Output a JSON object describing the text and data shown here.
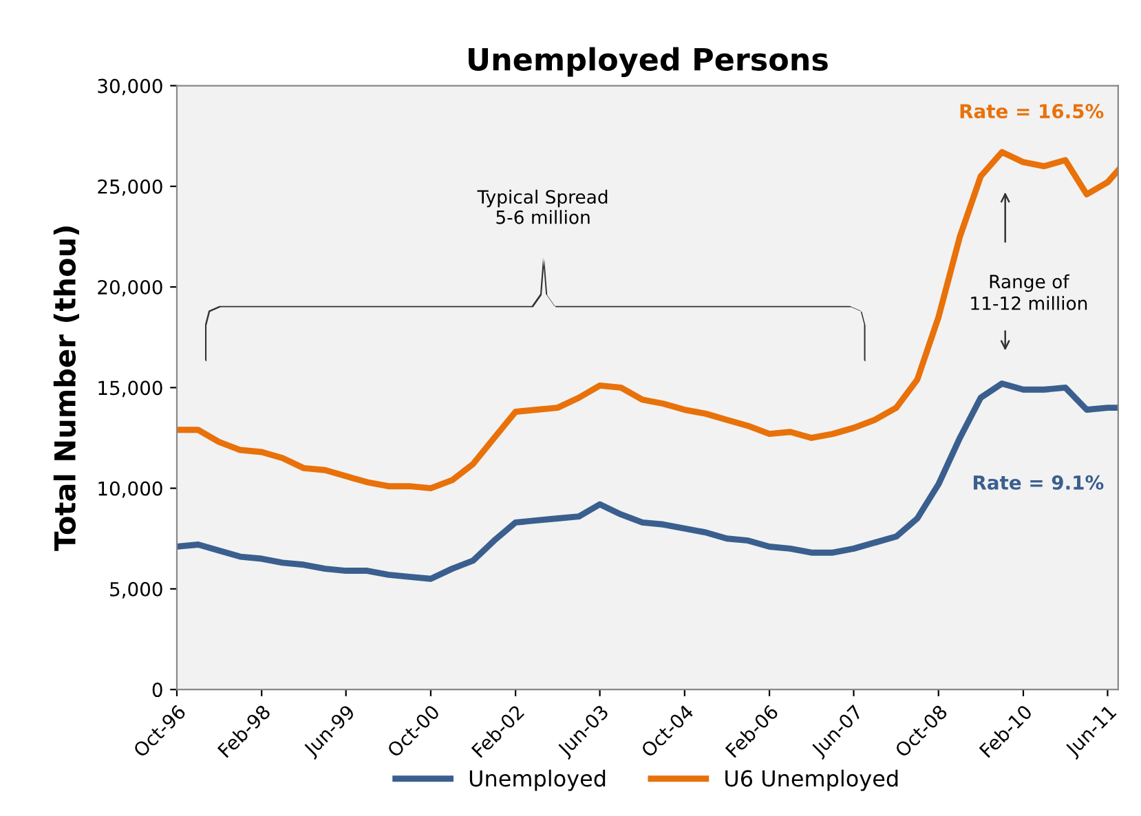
{
  "chart_data": {
    "type": "line",
    "title": "Unemployed Persons",
    "ylabel": "Total Number (thou)",
    "x": [
      "1996-10",
      "1997-02",
      "1997-06",
      "1997-10",
      "1998-02",
      "1998-06",
      "1998-10",
      "1999-02",
      "1999-06",
      "1999-10",
      "2000-02",
      "2000-06",
      "2000-10",
      "2001-02",
      "2001-06",
      "2001-10",
      "2002-02",
      "2002-06",
      "2002-10",
      "2003-02",
      "2003-06",
      "2003-10",
      "2004-02",
      "2004-06",
      "2004-10",
      "2005-02",
      "2005-06",
      "2005-10",
      "2006-02",
      "2006-06",
      "2006-10",
      "2007-02",
      "2007-06",
      "2007-10",
      "2008-02",
      "2008-06",
      "2008-10",
      "2009-02",
      "2009-06",
      "2009-10",
      "2010-02",
      "2010-06",
      "2010-10",
      "2011-02",
      "2011-06",
      "2011-08"
    ],
    "series": [
      {
        "name": "Unemployed",
        "color": "#3a5f8f",
        "values": [
          7100,
          7200,
          6900,
          6600,
          6500,
          6300,
          6200,
          6000,
          5900,
          5900,
          5700,
          5600,
          5500,
          6000,
          6400,
          7400,
          8300,
          8400,
          8500,
          8600,
          9200,
          8700,
          8300,
          8200,
          8000,
          7800,
          7500,
          7400,
          7100,
          7000,
          6800,
          6800,
          7000,
          7300,
          7600,
          8500,
          10200,
          12500,
          14500,
          15200,
          14900,
          14900,
          15000,
          13900,
          14000,
          14000
        ]
      },
      {
        "name": "U6 Unemployed",
        "color": "#e8710a",
        "values": [
          12900,
          12900,
          12300,
          11900,
          11800,
          11500,
          11000,
          10900,
          10600,
          10300,
          10100,
          10100,
          10000,
          10400,
          11200,
          12500,
          13800,
          13900,
          14000,
          14500,
          15100,
          15000,
          14400,
          14200,
          13900,
          13700,
          13400,
          13100,
          12700,
          12800,
          12500,
          12700,
          13000,
          13400,
          14000,
          15400,
          18500,
          22500,
          25500,
          26700,
          26200,
          26000,
          26300,
          24600,
          25200,
          25800
        ]
      }
    ],
    "xlim": [
      "1996-10",
      "2011-08"
    ],
    "xticks": [
      {
        "value": "1996-10",
        "label": "Oct-96"
      },
      {
        "value": "1998-02",
        "label": "Feb-98"
      },
      {
        "value": "1999-06",
        "label": "Jun-99"
      },
      {
        "value": "2000-10",
        "label": "Oct-00"
      },
      {
        "value": "2002-02",
        "label": "Feb-02"
      },
      {
        "value": "2003-06",
        "label": "Jun-03"
      },
      {
        "value": "2004-10",
        "label": "Oct-04"
      },
      {
        "value": "2006-02",
        "label": "Feb-06"
      },
      {
        "value": "2007-06",
        "label": "Jun-07"
      },
      {
        "value": "2008-10",
        "label": "Oct-08"
      },
      {
        "value": "2010-02",
        "label": "Feb-10"
      },
      {
        "value": "2011-06",
        "label": "Jun-11"
      }
    ],
    "ylim": [
      0,
      30000
    ],
    "yticks": [
      {
        "value": 0,
        "label": "0"
      },
      {
        "value": 5000,
        "label": "5,000"
      },
      {
        "value": 10000,
        "label": "10,000"
      },
      {
        "value": 15000,
        "label": "15,000"
      },
      {
        "value": 20000,
        "label": "20,000"
      },
      {
        "value": 25000,
        "label": "25,000"
      },
      {
        "value": 30000,
        "label": "30,000"
      }
    ],
    "annotations": [
      "Typical Spread\n5-6 million",
      "Range of\n11-12 million",
      "Rate = 16.5%",
      "Rate = 9.1%"
    ],
    "grid": false,
    "legend": "bottom",
    "marker": "none",
    "line_style": "solid"
  }
}
